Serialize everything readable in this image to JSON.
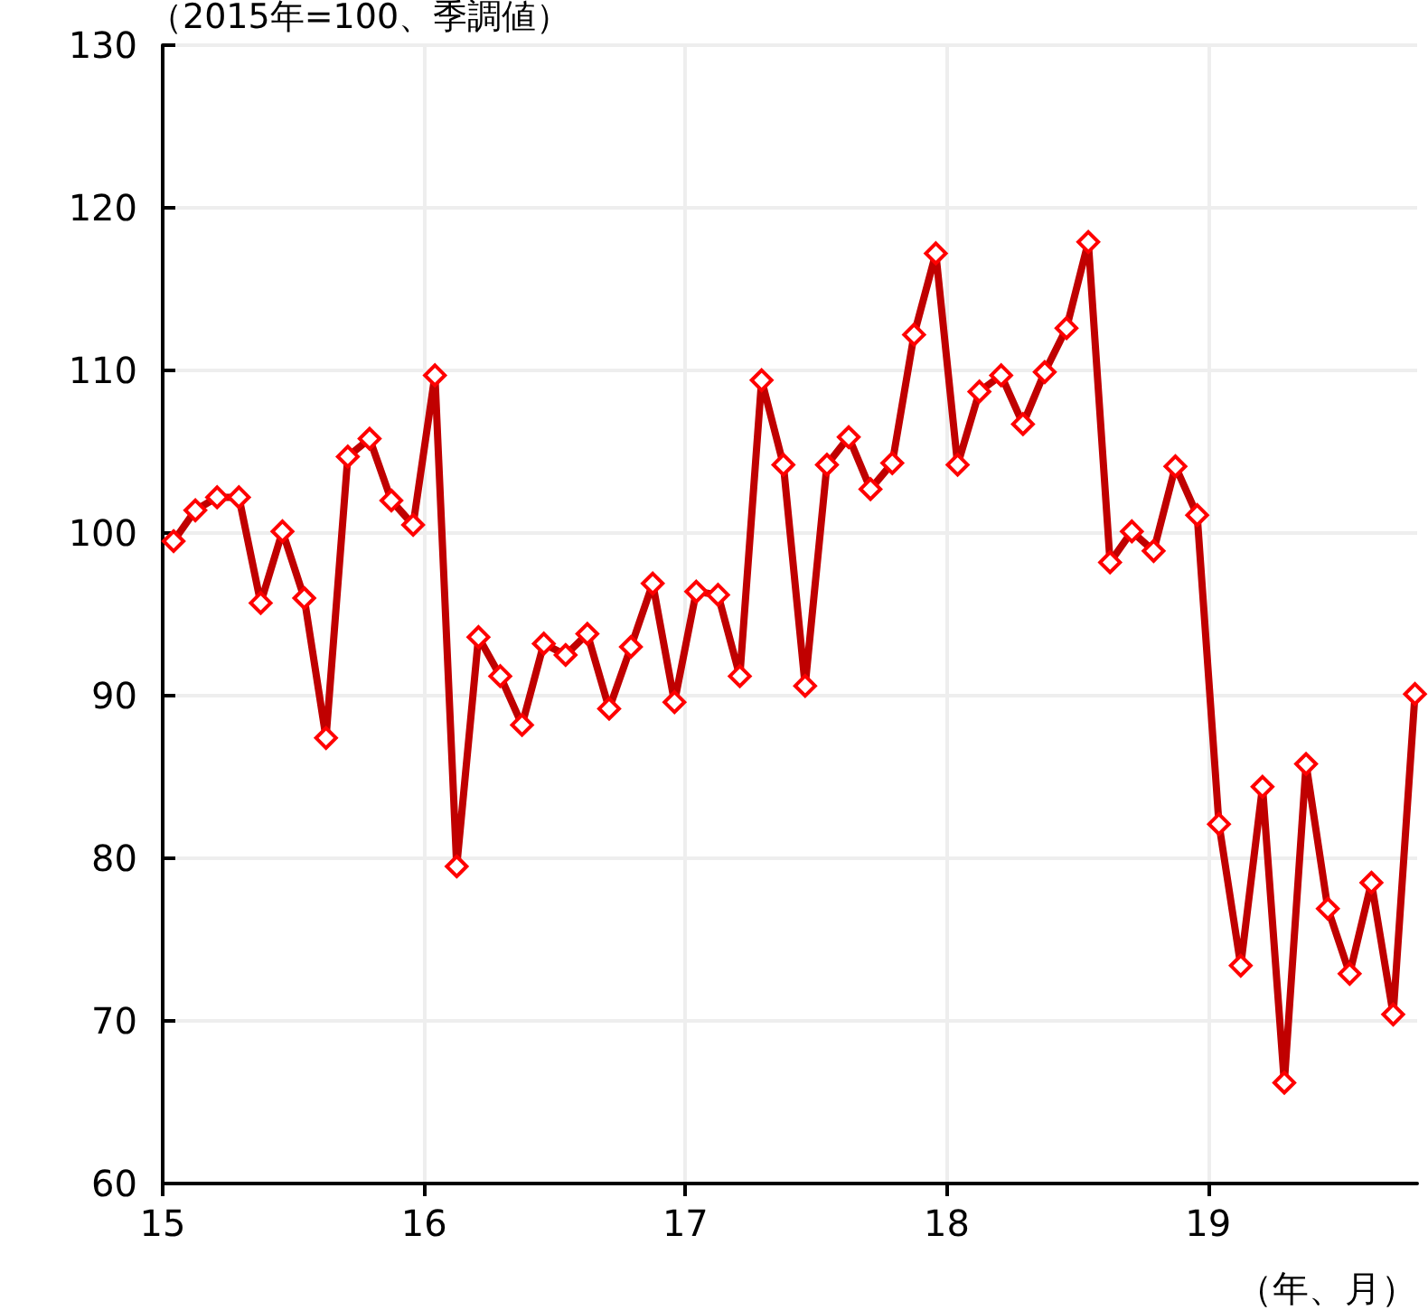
{
  "chart_data": {
    "type": "line",
    "ylabel": "（2015年=100、季調値）",
    "xlabel": "（年、月）",
    "x": [
      15.0417,
      15.125,
      15.2083,
      15.2917,
      15.375,
      15.4583,
      15.5417,
      15.625,
      15.7083,
      15.7917,
      15.875,
      15.9583,
      16.0417,
      16.125,
      16.2083,
      16.2917,
      16.375,
      16.4583,
      16.5417,
      16.625,
      16.7083,
      16.7917,
      16.875,
      16.9583,
      17.0417,
      17.125,
      17.2083,
      17.2917,
      17.375,
      17.4583,
      17.5417,
      17.625,
      17.7083,
      17.7917,
      17.875,
      17.9583,
      18.0417,
      18.125,
      18.2083,
      18.2917,
      18.375,
      18.4583,
      18.5417,
      18.625,
      18.7083,
      18.7917,
      18.875,
      18.9583,
      19.0417,
      19.125,
      19.2083,
      19.2917,
      19.375,
      19.4583,
      19.5417,
      19.625,
      19.7083,
      19.7917
    ],
    "series": [
      {
        "color": "#c00000",
        "values": [
          99.5,
          101.4,
          102.2,
          102.2,
          95.7,
          100.1,
          96.0,
          87.4,
          104.7,
          105.8,
          102.0,
          100.5,
          109.7,
          79.5,
          93.6,
          91.2,
          88.2,
          93.2,
          92.5,
          93.8,
          89.2,
          93.0,
          96.9,
          89.6,
          96.4,
          96.2,
          91.2,
          109.4,
          104.2,
          90.6,
          104.2,
          105.9,
          102.7,
          104.3,
          112.2,
          117.2,
          104.2,
          108.7,
          109.7,
          106.7,
          109.9,
          112.6,
          117.9,
          98.2,
          100.1,
          98.9,
          104.1,
          101.1,
          82.1,
          73.4,
          84.4,
          66.2,
          85.8,
          76.9,
          72.9,
          78.5,
          70.4,
          90.1
        ]
      }
    ],
    "xlim": [
      15,
      19.8
    ],
    "xticks": [
      15,
      16,
      17,
      18,
      19
    ],
    "ylim": [
      60,
      130
    ],
    "yticks": [
      60,
      70,
      80,
      90,
      100,
      110,
      120,
      130
    ],
    "grid": true,
    "marker": "diamond",
    "line_style": "solid"
  }
}
